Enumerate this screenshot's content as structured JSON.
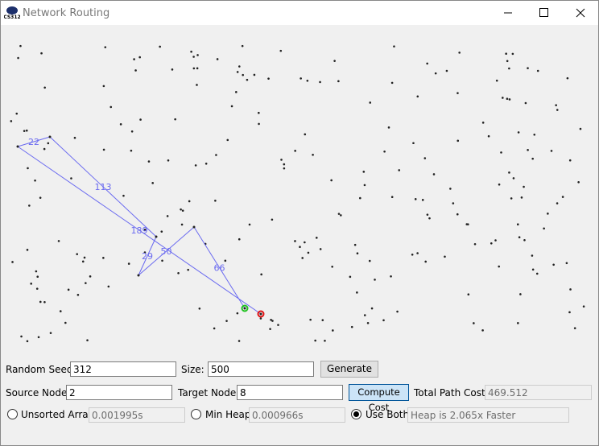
{
  "window": {
    "title": "Network Routing",
    "icon": "CS312"
  },
  "graph": {
    "edge_labels": [
      "66",
      "50",
      "29",
      "113",
      "22",
      "189"
    ]
  },
  "controls": {
    "random_seed": {
      "label": "Random Seed:",
      "value": "312"
    },
    "size": {
      "label": "Size:",
      "value": "500"
    },
    "generate": "Generate",
    "source_node": {
      "label": "Source Node:",
      "value": "2"
    },
    "target_node": {
      "label": "Target Node:",
      "value": "8"
    },
    "compute_cost": "Compute Cost",
    "total_path_cost": {
      "label": "Total Path Cost:",
      "value": "469.512"
    },
    "unsorted_array": {
      "label": "Unsorted Array",
      "time": "0.001995s"
    },
    "min_heap": {
      "label": "Min Heap",
      "time": "0.000966s"
    },
    "use_both": {
      "label": "Use Both",
      "result": "Heap is 2.065x Faster"
    }
  }
}
